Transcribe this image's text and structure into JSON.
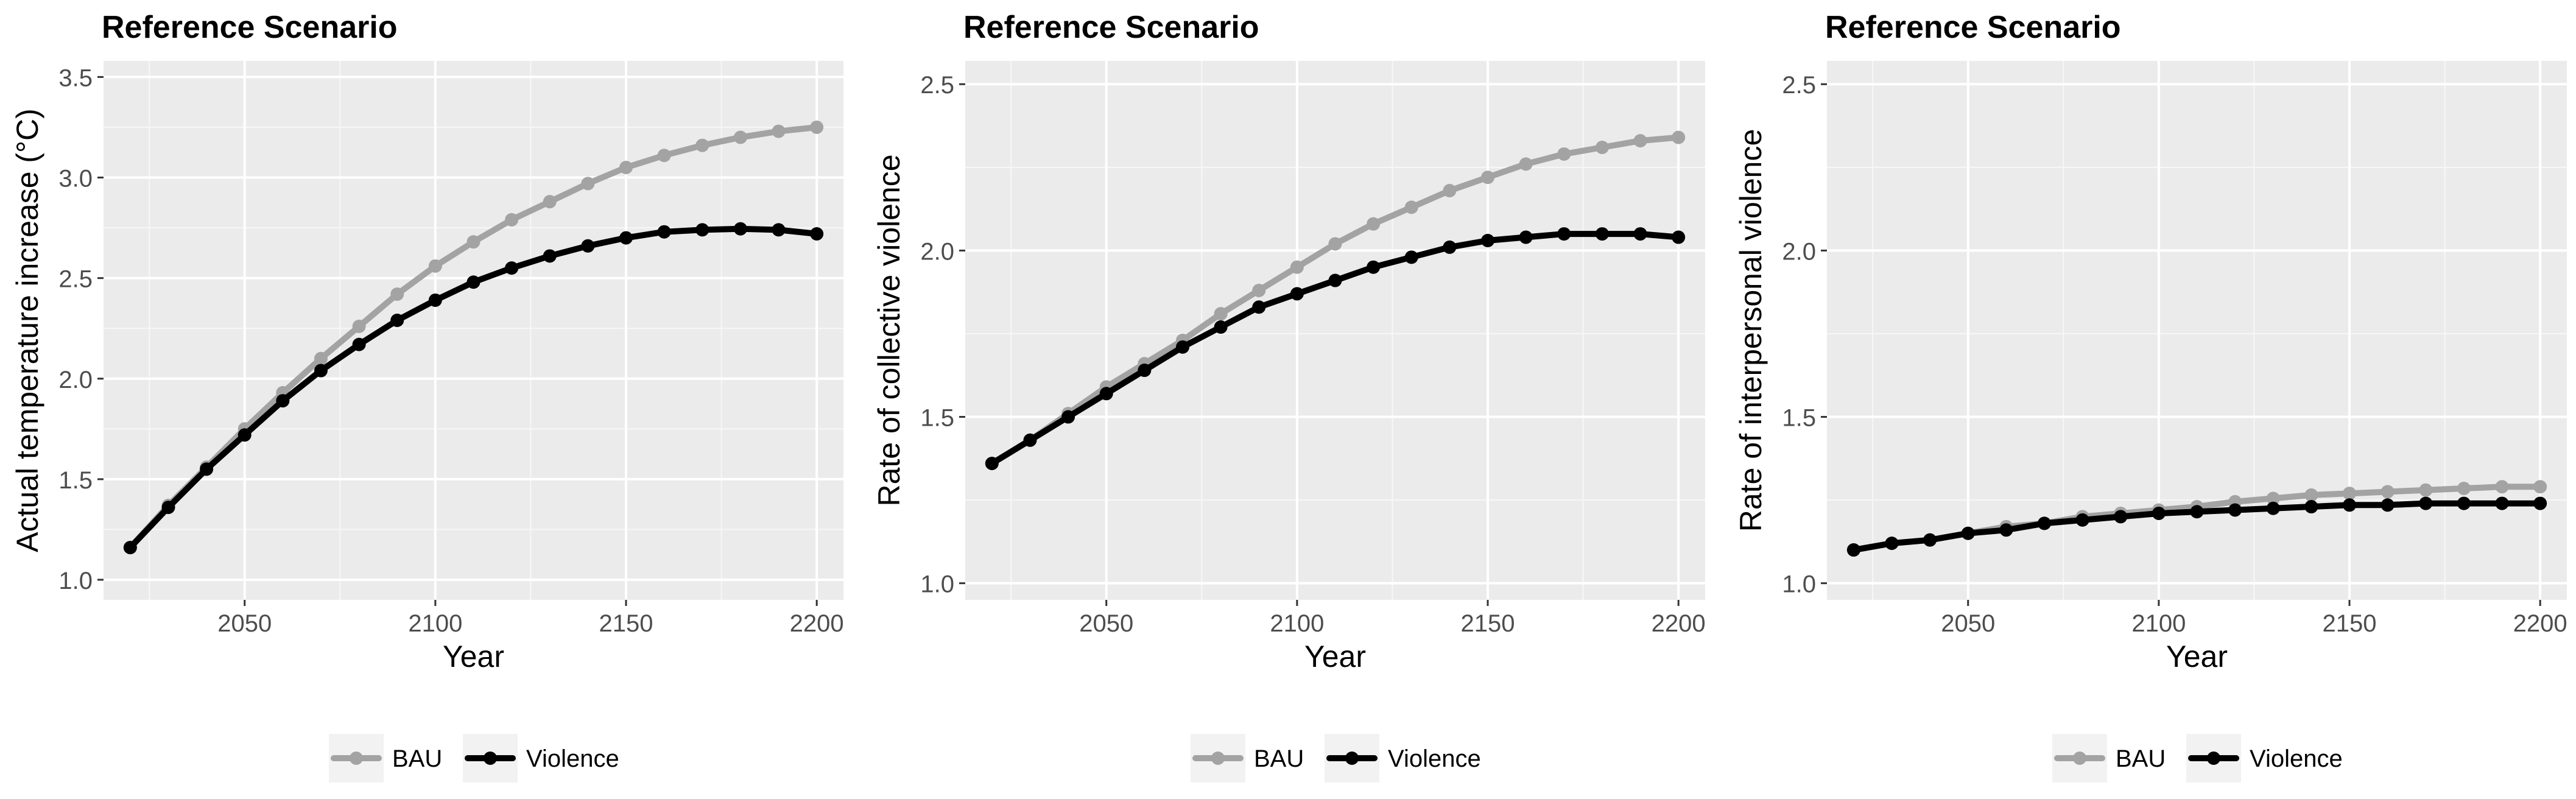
{
  "chart_data": [
    {
      "type": "line",
      "title": "Reference Scenario",
      "xlabel": "Year",
      "ylabel": "Actual temperature increase (°C)",
      "xlim": [
        2013,
        2207
      ],
      "ylim": [
        0.9,
        3.58
      ],
      "xticks": [
        2050,
        2100,
        2150,
        2200
      ],
      "yticks": [
        1.0,
        1.5,
        2.0,
        2.5,
        3.0,
        3.5
      ],
      "yticklabels": [
        "1.0",
        "1.5",
        "2.0",
        "2.5",
        "3.0",
        "3.5"
      ],
      "grid": true,
      "legend_position": "bottom",
      "x": [
        2020,
        2030,
        2040,
        2050,
        2060,
        2070,
        2080,
        2090,
        2100,
        2110,
        2120,
        2130,
        2140,
        2150,
        2160,
        2170,
        2180,
        2190,
        2200
      ],
      "series": [
        {
          "name": "BAU",
          "color": "#a3a3a3",
          "values": [
            1.16,
            1.37,
            1.56,
            1.75,
            1.93,
            2.1,
            2.26,
            2.42,
            2.56,
            2.68,
            2.79,
            2.88,
            2.97,
            3.05,
            3.11,
            3.16,
            3.2,
            3.23,
            3.25
          ]
        },
        {
          "name": "Violence",
          "color": "#000000",
          "values": [
            1.16,
            1.36,
            1.55,
            1.72,
            1.89,
            2.04,
            2.17,
            2.29,
            2.39,
            2.48,
            2.55,
            2.61,
            2.66,
            2.7,
            2.73,
            2.74,
            2.745,
            2.74,
            2.72
          ]
        }
      ]
    },
    {
      "type": "line",
      "title": "Reference Scenario",
      "xlabel": "Year",
      "ylabel": "Rate of collective violence",
      "xlim": [
        2013,
        2207
      ],
      "ylim": [
        0.95,
        2.57
      ],
      "xticks": [
        2050,
        2100,
        2150,
        2200
      ],
      "yticks": [
        1.0,
        1.5,
        2.0,
        2.5
      ],
      "yticklabels": [
        "1.0",
        "1.5",
        "2.0",
        "2.5"
      ],
      "grid": true,
      "legend_position": "bottom",
      "x": [
        2020,
        2030,
        2040,
        2050,
        2060,
        2070,
        2080,
        2090,
        2100,
        2110,
        2120,
        2130,
        2140,
        2150,
        2160,
        2170,
        2180,
        2190,
        2200
      ],
      "series": [
        {
          "name": "BAU",
          "color": "#a3a3a3",
          "values": [
            1.36,
            1.43,
            1.51,
            1.59,
            1.66,
            1.73,
            1.81,
            1.88,
            1.95,
            2.02,
            2.08,
            2.13,
            2.18,
            2.22,
            2.26,
            2.29,
            2.31,
            2.33,
            2.34
          ]
        },
        {
          "name": "Violence",
          "color": "#000000",
          "values": [
            1.36,
            1.43,
            1.5,
            1.57,
            1.64,
            1.71,
            1.77,
            1.83,
            1.87,
            1.91,
            1.95,
            1.98,
            2.01,
            2.03,
            2.04,
            2.05,
            2.05,
            2.05,
            2.04
          ]
        }
      ]
    },
    {
      "type": "line",
      "title": "Reference Scenario",
      "xlabel": "Year",
      "ylabel": "Rate of interpersonal violence",
      "xlim": [
        2013,
        2207
      ],
      "ylim": [
        0.95,
        2.57
      ],
      "xticks": [
        2050,
        2100,
        2150,
        2200
      ],
      "yticks": [
        1.0,
        1.5,
        2.0,
        2.5
      ],
      "yticklabels": [
        "1.0",
        "1.5",
        "2.0",
        "2.5"
      ],
      "grid": true,
      "legend_position": "bottom",
      "x": [
        2020,
        2030,
        2040,
        2050,
        2060,
        2070,
        2080,
        2090,
        2100,
        2110,
        2120,
        2130,
        2140,
        2150,
        2160,
        2170,
        2180,
        2190,
        2200
      ],
      "series": [
        {
          "name": "BAU",
          "color": "#a3a3a3",
          "values": [
            1.1,
            1.12,
            1.13,
            1.15,
            1.17,
            1.18,
            1.2,
            1.21,
            1.22,
            1.23,
            1.245,
            1.255,
            1.265,
            1.27,
            1.275,
            1.28,
            1.285,
            1.29,
            1.29
          ]
        },
        {
          "name": "Violence",
          "color": "#000000",
          "values": [
            1.1,
            1.12,
            1.13,
            1.15,
            1.16,
            1.18,
            1.19,
            1.2,
            1.21,
            1.215,
            1.22,
            1.225,
            1.23,
            1.235,
            1.235,
            1.24,
            1.24,
            1.24,
            1.24
          ]
        }
      ]
    }
  ]
}
